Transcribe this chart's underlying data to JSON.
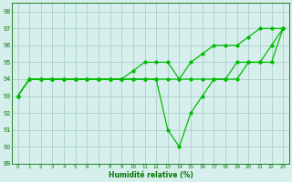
{
  "xlabel": "Humidité relative (%)",
  "xlim": [
    -0.5,
    23.5
  ],
  "ylim": [
    89,
    98.5
  ],
  "yticks": [
    89,
    90,
    91,
    92,
    93,
    94,
    95,
    96,
    97,
    98
  ],
  "xticks": [
    0,
    1,
    2,
    3,
    4,
    5,
    6,
    7,
    8,
    9,
    10,
    11,
    12,
    13,
    14,
    15,
    16,
    17,
    18,
    19,
    20,
    21,
    22,
    23
  ],
  "bg_color": "#d6efed",
  "grid_color": "#aed4d0",
  "line_color": "#00bb00",
  "line1_x": [
    0,
    1,
    2,
    3,
    4,
    5,
    6,
    7,
    8,
    9,
    10,
    11,
    12,
    13,
    14,
    15,
    16,
    17,
    18,
    19,
    20,
    21,
    22,
    23
  ],
  "line1_y": [
    93,
    94,
    94,
    94,
    94,
    94,
    94,
    94,
    94,
    94,
    94.5,
    95,
    95,
    95,
    94,
    95,
    95.5,
    96,
    96,
    96,
    96.5,
    97,
    97,
    97
  ],
  "line2_x": [
    0,
    1,
    2,
    3,
    4,
    5,
    6,
    7,
    8,
    9,
    10,
    11,
    12,
    13,
    14,
    15,
    16,
    17,
    18,
    19,
    20,
    21,
    22,
    23
  ],
  "line2_y": [
    93,
    94,
    94,
    94,
    94,
    94,
    94,
    94,
    94,
    94,
    94,
    94,
    94,
    94,
    94,
    94,
    94,
    94,
    94,
    95,
    95,
    95,
    95,
    97
  ],
  "line3_x": [
    0,
    1,
    2,
    3,
    4,
    5,
    6,
    7,
    8,
    9,
    10,
    11,
    12,
    13,
    14,
    15,
    16,
    17,
    18,
    19,
    20,
    21,
    22,
    23
  ],
  "line3_y": [
    93,
    94,
    94,
    94,
    94,
    94,
    94,
    94,
    94,
    94,
    94,
    94,
    94,
    91,
    90,
    92,
    93,
    94,
    94,
    94,
    95,
    95,
    96,
    97
  ]
}
